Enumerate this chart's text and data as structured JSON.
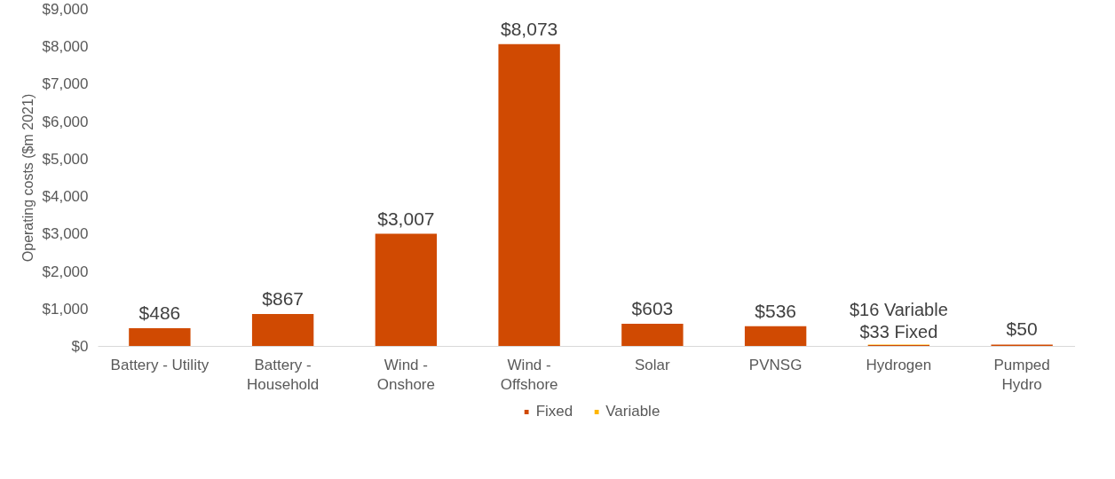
{
  "chart_data": {
    "type": "bar",
    "stacked": true,
    "ylabel": "Operating costs ($m 2021)",
    "categories": [
      "Battery - Utility",
      "Battery -\nHousehold",
      "Wind -\nOnshore",
      "Wind -\nOffshore",
      "Solar",
      "PVNSG",
      "Hydrogen",
      "Pumped\nHydro"
    ],
    "series": [
      {
        "name": "Fixed",
        "color": "#d04a02",
        "values": [
          486,
          867,
          3007,
          8073,
          603,
          536,
          33,
          50
        ]
      },
      {
        "name": "Variable",
        "color": "#ffb600",
        "values": [
          null,
          null,
          null,
          null,
          null,
          null,
          16,
          null
        ]
      }
    ],
    "totals": [
      "$486",
      "$867",
      "$3,007",
      "$8,073",
      "$603",
      "$536",
      null,
      "$50"
    ],
    "annotations": [
      {
        "text": "$16 Variable",
        "x": "Hydrogen",
        "y": 49
      },
      {
        "text": "$33 Fixed",
        "x": "Hydrogen",
        "y": 33
      }
    ],
    "ylim": [
      0,
      9000
    ],
    "yticks": [
      {
        "value": 0,
        "label": "$0"
      },
      {
        "value": 1000,
        "label": "$1,000"
      },
      {
        "value": 2000,
        "label": "$2,000"
      },
      {
        "value": 3000,
        "label": "$3,000"
      },
      {
        "value": 4000,
        "label": "$4,000"
      },
      {
        "value": 5000,
        "label": "$5,000"
      },
      {
        "value": 6000,
        "label": "$6,000"
      },
      {
        "value": 7000,
        "label": "$7,000"
      },
      {
        "value": 8000,
        "label": "$8,000"
      },
      {
        "value": 9000,
        "label": "$9,000"
      }
    ],
    "legend": "bottom"
  }
}
